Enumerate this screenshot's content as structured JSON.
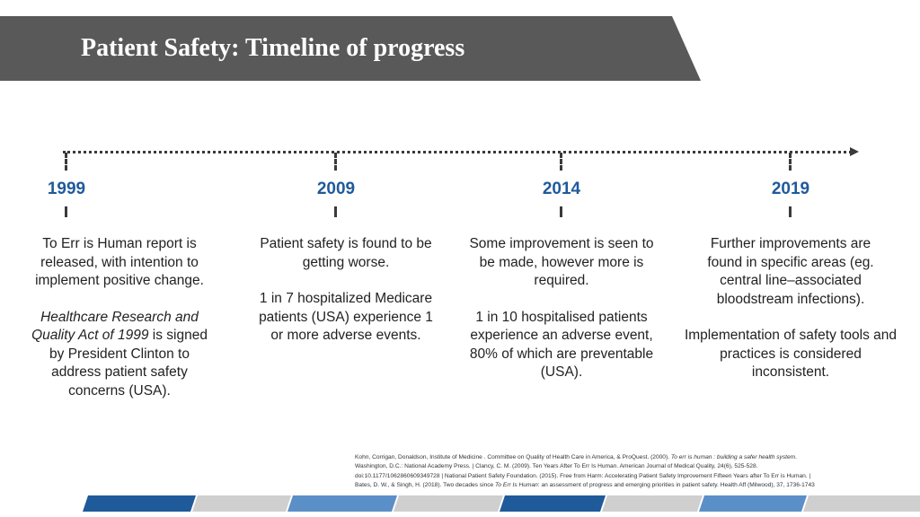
{
  "header": {
    "title": "Patient Safety: Timeline of progress"
  },
  "timeline": [
    {
      "year": "1999",
      "p1": "To Err is Human report is released, with intention to implement positive change.",
      "p2_italic": "Healthcare Research and Quality Act of 1999",
      "p2_rest": " is signed by President Clinton to address patient safety concerns (USA)."
    },
    {
      "year": "2009",
      "p1": "Patient safety is found to be getting worse.",
      "p2": "1 in 7 hospitalized Medicare patients (USA) experience 1 or more adverse events."
    },
    {
      "year": "2014",
      "p1": "Some improvement is seen to be made, however more is required.",
      "p2": "1 in 10 hospitalised patients experience an adverse event, 80% of which are preventable (USA)."
    },
    {
      "year": "2019",
      "p1": "Further improvements are found in specific areas (eg. central line–associated bloodstream infections).",
      "p2": "Implementation of safety tools and practices is considered inconsistent."
    }
  ],
  "references": {
    "r1a": "Kohn, Corrigan, Donaldson, Institute of Medicine . Committee on Quality of Health Care in America, & ProQuest. (2000). ",
    "r1b": "To err is human : building a safer health system",
    "r1c": ".",
    "r2": "Washington, D.C.: National Academy Press. | Clancy, C. M. (2009). Ten Years After To Err Is Human. American Journal of Medical Quality, 24(6), 525-528.",
    "r3": "doi:10.1177/1062860609349728 | National Patient Safety Foundation. (2015). Free from Harm: Accelerating Patient Safety Improvement Fifteen Years after To Err is Human. |",
    "r4a": "Bates, D. W., & Singh, H. (2018). Two decades since ",
    "r4b": "To Err Is Human",
    "r4c": ": an assessment of progress and emerging priorities in patient safety. Health Aff (Milwood), 37, 1736-1743"
  },
  "colors": {
    "banner": "#595959",
    "year": "#1f5a9a",
    "stripe_dark": "#1f5a9a",
    "stripe_mid": "#5b8fc7",
    "stripe_light": "#c9c9c9"
  }
}
